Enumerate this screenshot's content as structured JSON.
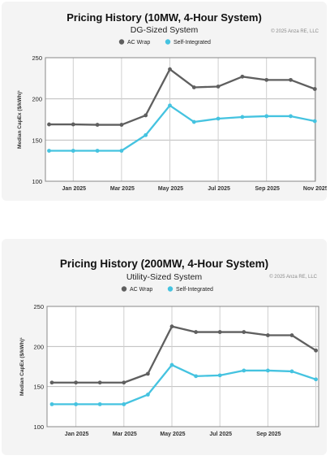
{
  "colors": {
    "ac_wrap": "#5f5f5f",
    "self_integrated": "#45c3e0"
  },
  "chart_data": [
    {
      "type": "line",
      "title": "Pricing History (10MW, 4-Hour System)",
      "subtitle": "DG-Sized System",
      "copyright": "© 2025 Anza RE, LLC",
      "ylabel": "Median CapEx ($/kWh)¹",
      "xlabel": "",
      "ylim": [
        100,
        250
      ],
      "yticks": [
        "100",
        "150",
        "200",
        "250"
      ],
      "xticks": [
        "Jan 2025",
        "Mar 2025",
        "May 2025",
        "Jul 2025",
        "Sep 2025",
        "Nov 2025"
      ],
      "grid": true,
      "legend_position": "top-center",
      "x": [
        "2024-12",
        "2025-01",
        "2025-02",
        "2025-03",
        "2025-04",
        "2025-05",
        "2025-06",
        "2025-07",
        "2025-08",
        "2025-09",
        "2025-10",
        "2025-11"
      ],
      "series": [
        {
          "name": "AC Wrap",
          "values": [
            169,
            169,
            168.5,
            168.5,
            180,
            236,
            214,
            215,
            227,
            223,
            223,
            212
          ]
        },
        {
          "name": "Self-Integrated",
          "values": [
            137,
            137,
            137,
            137,
            156,
            192,
            172,
            176,
            178,
            179,
            179,
            173
          ]
        }
      ]
    },
    {
      "type": "line",
      "title": "Pricing History (200MW, 4-Hour System)",
      "subtitle": "Utility-Sized System",
      "copyright": "© 2025 Anza RE, LLC",
      "ylabel": "Median CapEx ($/kWh)¹",
      "xlabel": "",
      "ylim": [
        100,
        250
      ],
      "yticks": [
        "100",
        "150",
        "200",
        "250"
      ],
      "xticks": [
        "Jan 2025",
        "Mar 2025",
        "May 2025",
        "Jul 2025",
        "Sep 2025"
      ],
      "grid": true,
      "legend_position": "top-center",
      "x": [
        "2024-12",
        "2025-01",
        "2025-02",
        "2025-03",
        "2025-04",
        "2025-05",
        "2025-06",
        "2025-07",
        "2025-08",
        "2025-09",
        "2025-10",
        "2025-11"
      ],
      "series": [
        {
          "name": "AC Wrap",
          "values": [
            155,
            155,
            155,
            155,
            166,
            225,
            218,
            218,
            218,
            214,
            214,
            195
          ]
        },
        {
          "name": "Self-Integrated",
          "values": [
            128,
            128,
            128,
            128,
            140,
            177,
            163,
            164,
            170,
            170,
            169,
            159
          ]
        }
      ]
    }
  ]
}
